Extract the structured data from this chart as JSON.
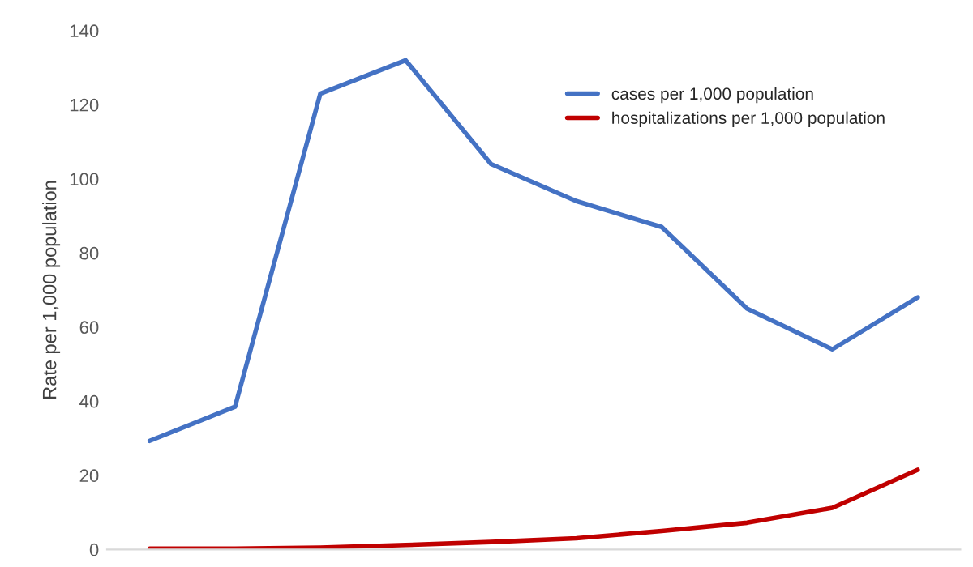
{
  "chart_data": {
    "type": "line",
    "ylabel": "Rate per 1,000 population",
    "categories": [
      null,
      null,
      null,
      null,
      null,
      null,
      null,
      null,
      null,
      null
    ],
    "series": [
      {
        "name": "cases per 1,000 population",
        "color": "#4472c4",
        "values": [
          29.3,
          38.5,
          123,
          132,
          104,
          94,
          87,
          65,
          54,
          68
        ]
      },
      {
        "name": "hospitalizations per 1,000 population",
        "color": "#c00000",
        "values": [
          0.2,
          0.2,
          0.5,
          1.2,
          2,
          3,
          5,
          7.2,
          11.2,
          21.5
        ]
      }
    ],
    "ylim": [
      0,
      140
    ],
    "yticks": [
      0,
      20,
      40,
      60,
      80,
      100,
      120,
      140
    ],
    "grid": false,
    "legend": "top right",
    "marker": "none",
    "line_style": "solid"
  }
}
